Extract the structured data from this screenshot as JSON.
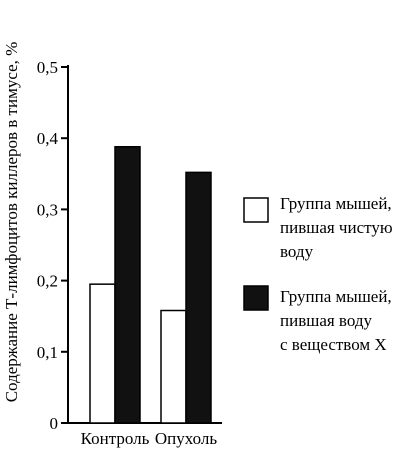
{
  "chart_data": {
    "type": "bar",
    "title": "",
    "ylabel": "Содержание Т-лимфоцитов киллеров в тимусе, %",
    "xlabel": "",
    "categories": [
      "Контроль",
      "Опухоль"
    ],
    "ylim": [
      0,
      0.5
    ],
    "yticks": [
      0,
      0.1,
      0.2,
      0.3,
      0.4,
      0.5
    ],
    "ytick_labels": [
      "0",
      "0,1",
      "0,2",
      "0,3",
      "0,4",
      "0,5"
    ],
    "grid": false,
    "legend_position": "right",
    "series": [
      {
        "name": "Группа мышей, пившая чистую воду",
        "legend_lines": [
          "Группа мышей,",
          "пившая чистую",
          "воду"
        ],
        "values": [
          0.195,
          0.158
        ],
        "fill": "#ffffff"
      },
      {
        "name": "Группа мышей, пившая воду с веществом X",
        "legend_lines": [
          "Группа мышей,",
          "пившая воду",
          "с веществом X"
        ],
        "values": [
          0.388,
          0.352
        ],
        "fill": "#111111"
      }
    ]
  }
}
